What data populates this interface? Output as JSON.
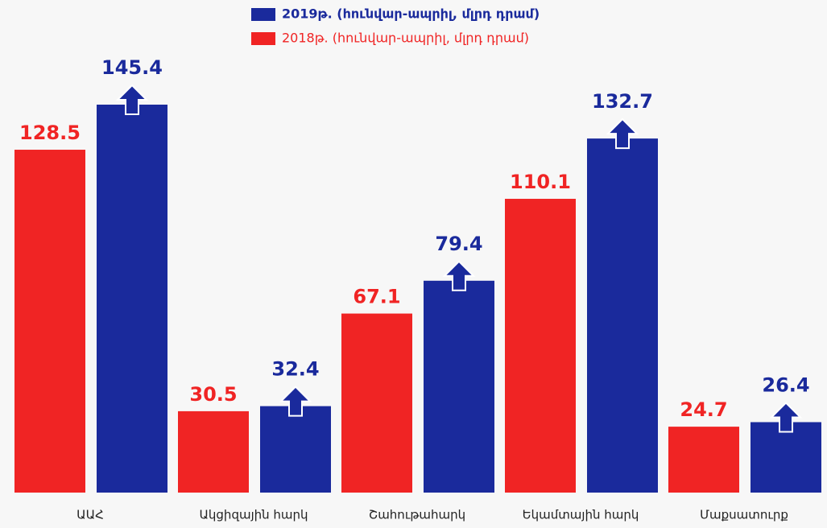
{
  "chart_data": {
    "type": "bar",
    "categories": [
      "ԱԱՀ",
      "Ակցիզային հարկ",
      "Շահութահարկ",
      "Եկամտային հարկ",
      "Մաքսատուրք"
    ],
    "series": [
      {
        "name": "2018թ. (հունվար-ապրիլ, մլրդ դրամ)",
        "color": "#f02424",
        "values": [
          128.5,
          30.5,
          67.1,
          110.1,
          24.7
        ]
      },
      {
        "name": "2019թ. (հունվար-ապրիլ, մլրդ դրամ)",
        "color": "#1a2a9c",
        "values": [
          145.4,
          32.4,
          79.4,
          132.7,
          26.4
        ]
      }
    ]
  }
}
